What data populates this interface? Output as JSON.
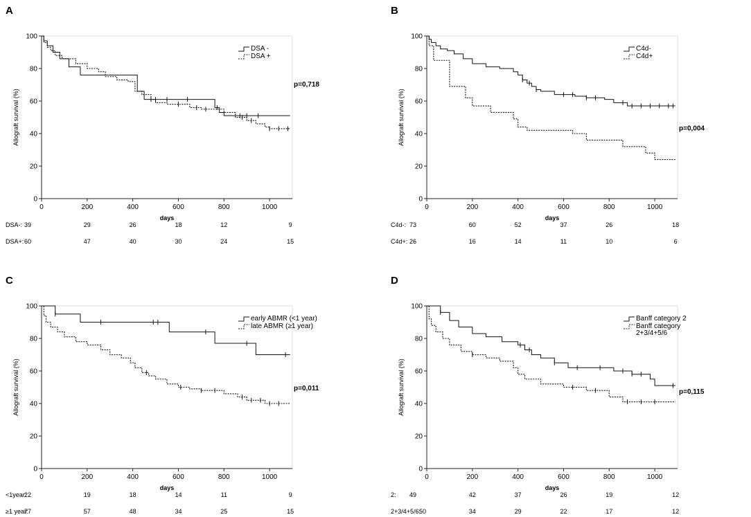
{
  "chart_data": [
    {
      "type": "line",
      "panel": "A",
      "xlabel": "days",
      "ylabel": "Allograft survival (%)",
      "xticks": [
        0,
        200,
        400,
        600,
        800,
        1000
      ],
      "yticks": [
        0,
        20,
        40,
        60,
        80,
        100
      ],
      "xlim": [
        0,
        1100
      ],
      "ylim": [
        0,
        100
      ],
      "legend": [
        "DSA -",
        "DSA +"
      ],
      "legend_position": "top-right",
      "p_value": "p=0,718",
      "series": [
        {
          "name": "DSA -",
          "style": "solid",
          "x": [
            0,
            10,
            25,
            50,
            80,
            120,
            170,
            400,
            420,
            450,
            760,
            780,
            800,
            1090
          ],
          "y": [
            100,
            97,
            94,
            90,
            86,
            81,
            76,
            76,
            66,
            61,
            56,
            53,
            51,
            51
          ]
        },
        {
          "name": "DSA +",
          "style": "dotted",
          "x": [
            0,
            10,
            25,
            40,
            60,
            90,
            150,
            200,
            250,
            280,
            330,
            380,
            410,
            440,
            480,
            500,
            550,
            600,
            650,
            700,
            760,
            800,
            850,
            900,
            940,
            980,
            1000,
            1090
          ],
          "y": [
            100,
            96,
            93,
            91,
            88,
            86,
            83,
            80,
            78,
            75,
            73,
            72,
            66,
            64,
            61,
            59,
            58,
            58,
            56,
            55,
            55,
            53,
            50,
            48,
            46,
            44,
            43,
            43
          ]
        }
      ],
      "censor_marks": [
        {
          "series": "DSA -",
          "x": [
            500,
            550,
            640,
            770,
            870,
            900,
            950
          ]
        },
        {
          "series": "DSA +",
          "x": [
            480,
            600,
            680,
            720,
            880,
            920,
            1000,
            1040,
            1080
          ]
        }
      ],
      "risk_table": [
        {
          "label": "DSA-:",
          "values": [
            "39",
            "29",
            "26",
            "18",
            "12",
            "9"
          ]
        },
        {
          "label": "DSA+:",
          "values": [
            "60",
            "47",
            "40",
            "30",
            "24",
            "15"
          ]
        }
      ]
    },
    {
      "type": "line",
      "panel": "B",
      "xlabel": "days",
      "ylabel": "Allograft survival (%)",
      "xticks": [
        0,
        200,
        400,
        600,
        800,
        1000
      ],
      "yticks": [
        0,
        20,
        40,
        60,
        80,
        100
      ],
      "xlim": [
        0,
        1100
      ],
      "ylim": [
        0,
        100
      ],
      "legend": [
        "C4d-",
        "C4d+"
      ],
      "legend_position": "top-right",
      "p_value": "p=0,004",
      "series": [
        {
          "name": "C4d-",
          "style": "solid",
          "x": [
            0,
            10,
            20,
            40,
            60,
            90,
            120,
            160,
            200,
            260,
            320,
            380,
            400,
            420,
            440,
            460,
            480,
            500,
            560,
            650,
            700,
            780,
            820,
            880,
            1090
          ],
          "y": [
            100,
            98,
            96,
            94,
            92,
            91,
            89,
            86,
            83,
            81,
            80,
            78,
            76,
            73,
            71,
            69,
            67,
            66,
            64,
            63,
            62,
            61,
            59,
            57,
            57
          ]
        },
        {
          "name": "C4d+",
          "style": "dotted",
          "x": [
            0,
            10,
            30,
            100,
            170,
            200,
            280,
            380,
            400,
            440,
            500,
            640,
            700,
            860,
            960,
            1000,
            1090
          ],
          "y": [
            100,
            94,
            85,
            69,
            62,
            57,
            53,
            49,
            44,
            42,
            42,
            40,
            36,
            32,
            28,
            24,
            24
          ]
        }
      ],
      "censor_marks": [
        {
          "series": "C4d-",
          "x": [
            420,
            450,
            480,
            600,
            640,
            700,
            740,
            860,
            900,
            940,
            980,
            1020,
            1060,
            1080
          ]
        }
      ],
      "risk_table": [
        {
          "label": "C4d-:",
          "values": [
            "73",
            "60",
            "52",
            "37",
            "26",
            "18"
          ]
        },
        {
          "label": "C4d+:",
          "values": [
            "26",
            "16",
            "14",
            "11",
            "10",
            "6"
          ]
        }
      ]
    },
    {
      "type": "line",
      "panel": "C",
      "xlabel": "days",
      "ylabel": "Allograft survival (%)",
      "xticks": [
        0,
        200,
        400,
        600,
        800,
        1000
      ],
      "yticks": [
        0,
        20,
        40,
        60,
        80,
        100
      ],
      "xlim": [
        0,
        1100
      ],
      "ylim": [
        0,
        100
      ],
      "legend": [
        "early ABMR (<1 year)",
        "late ABMR (≥1 year)"
      ],
      "legend_position": "top-right",
      "p_value": "p=0,011",
      "series": [
        {
          "name": "early ABMR (<1 year)",
          "style": "solid",
          "x": [
            0,
            60,
            170,
            560,
            760,
            940,
            1090
          ],
          "y": [
            100,
            95,
            90,
            84,
            77,
            70,
            70
          ]
        },
        {
          "name": "late ABMR (≥1 year)",
          "style": "dotted",
          "x": [
            0,
            10,
            20,
            40,
            70,
            100,
            150,
            200,
            260,
            300,
            350,
            390,
            410,
            440,
            470,
            500,
            550,
            600,
            650,
            700,
            800,
            860,
            900,
            980,
            1090
          ],
          "y": [
            100,
            94,
            90,
            87,
            84,
            81,
            78,
            76,
            73,
            70,
            68,
            65,
            62,
            59,
            57,
            55,
            52,
            50,
            49,
            48,
            46,
            44,
            42,
            40,
            40
          ]
        }
      ],
      "censor_marks": [
        {
          "series": "early ABMR (<1 year)",
          "x": [
            60,
            260,
            490,
            510,
            720,
            900,
            1070
          ]
        },
        {
          "series": "late ABMR (≥1 year)",
          "x": [
            460,
            610,
            700,
            760,
            880,
            920,
            960,
            1000,
            1040
          ]
        }
      ],
      "risk_table": [
        {
          "label": "<1year:",
          "values": [
            "22",
            "19",
            "18",
            "14",
            "11",
            "9"
          ]
        },
        {
          "label": "≥1 year:",
          "values": [
            "77",
            "57",
            "48",
            "34",
            "25",
            "15"
          ]
        }
      ]
    },
    {
      "type": "line",
      "panel": "D",
      "xlabel": "days",
      "ylabel": "Allograft survival (%)",
      "xticks": [
        0,
        200,
        400,
        600,
        800,
        1000
      ],
      "yticks": [
        0,
        20,
        40,
        60,
        80,
        100
      ],
      "xlim": [
        0,
        1100
      ],
      "ylim": [
        0,
        100
      ],
      "legend": [
        "Banff category 2",
        "Banff category 2+3/4+5/6"
      ],
      "legend_position": "top-right",
      "p_value": "p=0,115",
      "series": [
        {
          "name": "Banff category 2",
          "style": "solid",
          "x": [
            0,
            60,
            100,
            140,
            200,
            260,
            330,
            400,
            430,
            460,
            500,
            560,
            620,
            700,
            760,
            820,
            900,
            980,
            1000,
            1090
          ],
          "y": [
            100,
            96,
            91,
            87,
            83,
            81,
            78,
            76,
            73,
            70,
            68,
            65,
            62,
            62,
            62,
            60,
            58,
            55,
            51,
            51
          ]
        },
        {
          "name": "Banff category 2+3/4+5/6",
          "style": "dotted",
          "x": [
            0,
            10,
            20,
            40,
            70,
            100,
            150,
            200,
            260,
            320,
            380,
            400,
            430,
            500,
            600,
            700,
            800,
            860,
            1090
          ],
          "y": [
            100,
            92,
            88,
            84,
            80,
            76,
            72,
            70,
            68,
            66,
            62,
            58,
            55,
            52,
            50,
            48,
            44,
            41,
            41
          ]
        }
      ],
      "censor_marks": [
        {
          "series": "Banff category 2",
          "x": [
            60,
            410,
            450,
            560,
            660,
            760,
            860,
            900,
            940,
            1080
          ]
        },
        {
          "series": "Banff category 2+3/4+5/6",
          "x": [
            200,
            640,
            740,
            880,
            940,
            1000
          ]
        }
      ],
      "risk_table": [
        {
          "label": "2:",
          "values": [
            "49",
            "42",
            "37",
            "26",
            "19",
            "12"
          ]
        },
        {
          "label": "2+3/4+5/6:",
          "values": [
            "50",
            "34",
            "29",
            "22",
            "17",
            "12"
          ]
        }
      ]
    }
  ]
}
